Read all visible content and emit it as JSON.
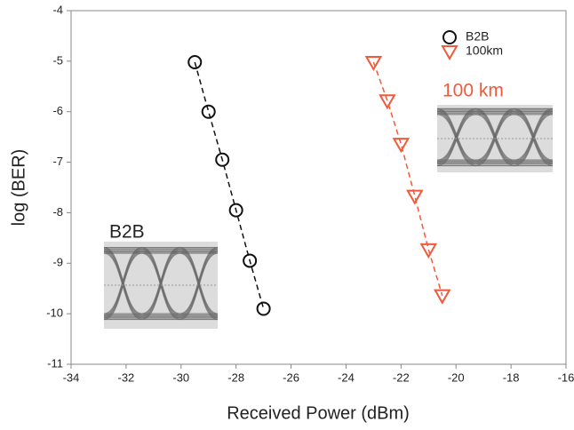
{
  "chart_data": {
    "type": "scatter",
    "xlabel": "Received Power (dBm)",
    "ylabel": "log (BER)",
    "xlim": [
      -34,
      -16
    ],
    "ylim": [
      -11,
      -4
    ],
    "xticks": [
      -34,
      -32,
      -30,
      -28,
      -26,
      -24,
      -22,
      -20,
      -18,
      -16
    ],
    "yticks": [
      -11,
      -10,
      -9,
      -8,
      -7,
      -6,
      -5,
      -4
    ],
    "linestyle": "dashed",
    "legend": "upper right",
    "series": [
      {
        "name": "B2B",
        "color": "#111111",
        "marker": "circle",
        "x": [
          -29.5,
          -29,
          -28.5,
          -28,
          -27.5,
          -27
        ],
        "values": [
          -5.02,
          -6.0,
          -6.95,
          -7.95,
          -8.95,
          -9.9
        ]
      },
      {
        "name": "100km",
        "color": "#f05a3a",
        "marker": "triangle",
        "x": [
          -23,
          -22.5,
          -22,
          -21.5,
          -21,
          -20.5
        ],
        "values": [
          -5.02,
          -5.78,
          -6.64,
          -7.67,
          -8.73,
          -9.64
        ]
      }
    ],
    "annotations": [
      {
        "text": "B2B"
      },
      {
        "text": "100 km"
      }
    ]
  }
}
